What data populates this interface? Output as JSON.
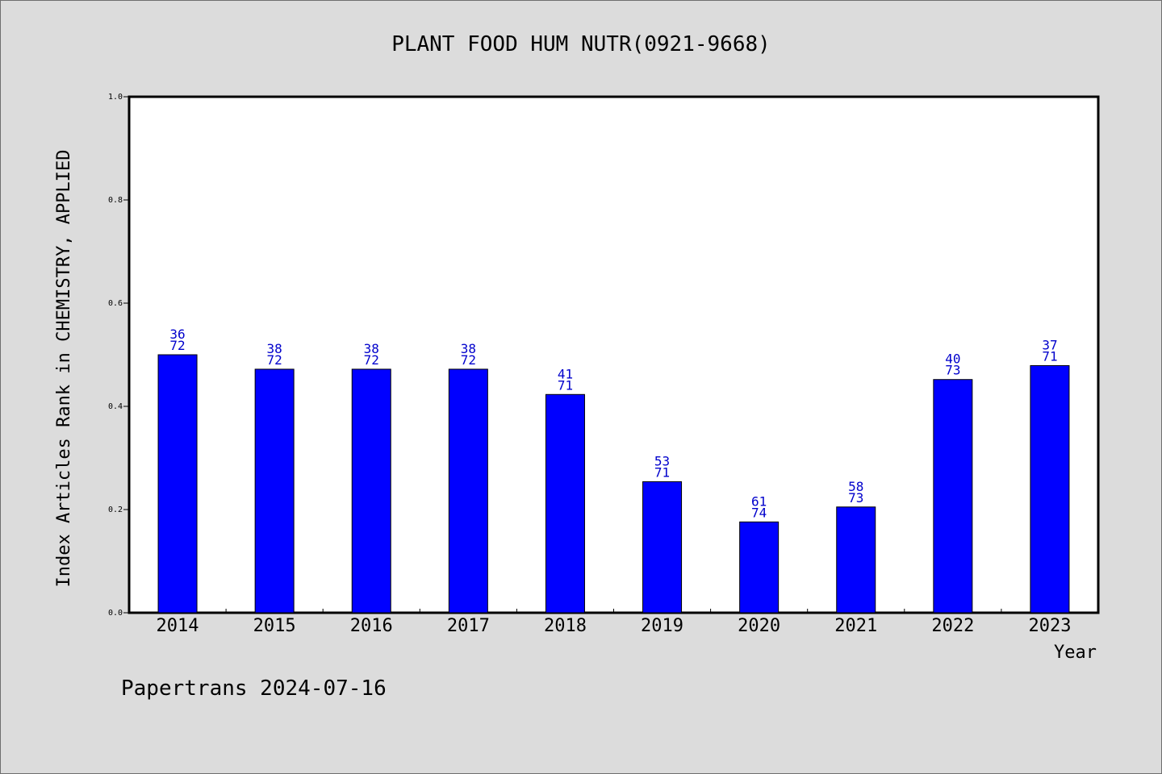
{
  "chart_data": {
    "type": "bar",
    "title": "PLANT FOOD HUM NUTR(0921-9668)",
    "xlabel": "Year",
    "ylabel": "Index Articles Rank in CHEMISTRY, APPLIED",
    "ylim": [
      0,
      1.0
    ],
    "yticks": [
      "0.0",
      "0.2",
      "0.4",
      "0.6",
      "0.8",
      "1.0"
    ],
    "categories": [
      "2014",
      "2015",
      "2016",
      "2017",
      "2018",
      "2019",
      "2020",
      "2021",
      "2022",
      "2023"
    ],
    "values": [
      0.5,
      0.472,
      0.472,
      0.472,
      0.423,
      0.254,
      0.176,
      0.205,
      0.452,
      0.479
    ],
    "rank_labels": [
      "36",
      "38",
      "38",
      "38",
      "41",
      "53",
      "61",
      "58",
      "40",
      "37"
    ],
    "total_labels": [
      "72",
      "72",
      "72",
      "72",
      "71",
      "71",
      "74",
      "73",
      "73",
      "71"
    ],
    "bar_color": "#0000ff",
    "label_color": "#0000cc",
    "grid": false,
    "legend": "none"
  },
  "footer": "Papertrans 2024-07-16"
}
